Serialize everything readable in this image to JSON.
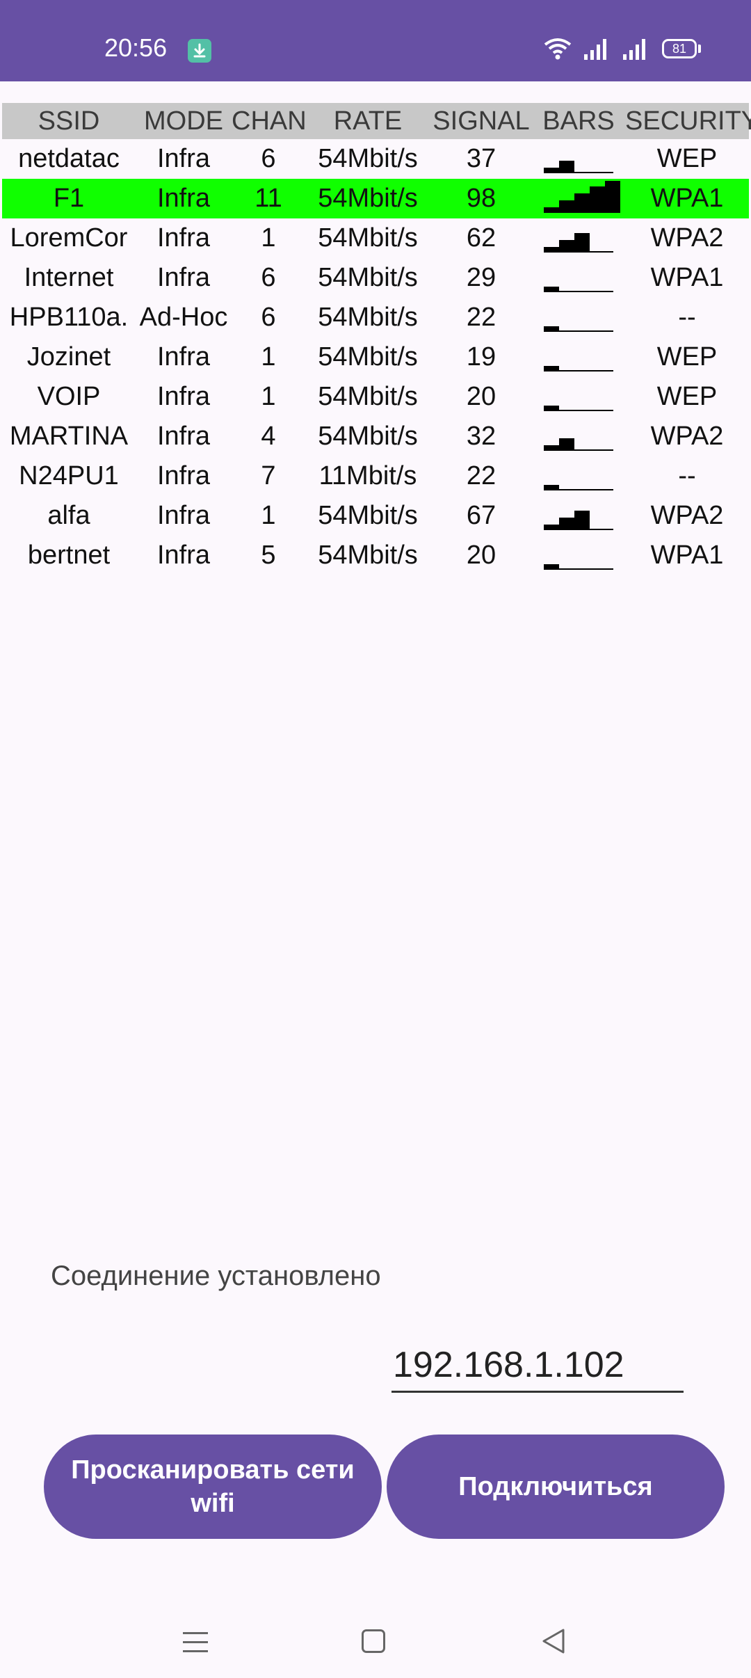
{
  "status_bar": {
    "time": "20:56",
    "battery": "81",
    "icons": [
      "download-icon",
      "wifi-icon",
      "signal-icon",
      "signal-icon",
      "battery-icon"
    ]
  },
  "table": {
    "headers": [
      "SSID",
      "MODE",
      "CHAN",
      "RATE",
      "SIGNAL",
      "BARS",
      "SECURITY"
    ],
    "rows": [
      {
        "ssid": "netdatac",
        "mode": "Infra",
        "chan": "6",
        "rate": "54Mbit/s",
        "signal": "37",
        "bars": 2,
        "security": "WEP",
        "selected": false
      },
      {
        "ssid": "F1",
        "mode": "Infra",
        "chan": "11",
        "rate": "54Mbit/s",
        "signal": "98",
        "bars": 5,
        "security": "WPA1",
        "selected": true
      },
      {
        "ssid": "LoremCor",
        "mode": "Infra",
        "chan": "1",
        "rate": "54Mbit/s",
        "signal": "62",
        "bars": 3,
        "security": "WPA2",
        "selected": false
      },
      {
        "ssid": "Internet",
        "mode": "Infra",
        "chan": "6",
        "rate": "54Mbit/s",
        "signal": "29",
        "bars": 1,
        "security": "WPA1",
        "selected": false
      },
      {
        "ssid": "HPB110a.",
        "mode": "Ad-Hoc",
        "chan": "6",
        "rate": "54Mbit/s",
        "signal": "22",
        "bars": 1,
        "security": "--",
        "selected": false
      },
      {
        "ssid": "Jozinet",
        "mode": "Infra",
        "chan": "1",
        "rate": "54Mbit/s",
        "signal": "19",
        "bars": 1,
        "security": "WEP",
        "selected": false
      },
      {
        "ssid": "VOIP",
        "mode": "Infra",
        "chan": "1",
        "rate": "54Mbit/s",
        "signal": "20",
        "bars": 1,
        "security": "WEP",
        "selected": false
      },
      {
        "ssid": "MARTINA",
        "mode": "Infra",
        "chan": "4",
        "rate": "54Mbit/s",
        "signal": "32",
        "bars": 2,
        "security": "WPA2",
        "selected": false
      },
      {
        "ssid": "N24PU1",
        "mode": "Infra",
        "chan": "7",
        "rate": "11Mbit/s",
        "signal": "22",
        "bars": 1,
        "security": "--",
        "selected": false
      },
      {
        "ssid": "alfa",
        "mode": "Infra",
        "chan": "1",
        "rate": "54Mbit/s",
        "signal": "67",
        "bars": 3,
        "security": "WPA2",
        "selected": false
      },
      {
        "ssid": "bertnet",
        "mode": "Infra",
        "chan": "5",
        "rate": "54Mbit/s",
        "signal": "20",
        "bars": 1,
        "security": "WPA1",
        "selected": false
      }
    ]
  },
  "connection_status": "Соединение установлено",
  "ip_value": "192.168.1.102",
  "buttons": {
    "scan": "Просканировать сети wifi",
    "connect": "Подключиться"
  },
  "nav": {
    "icons": [
      "menu-icon",
      "home-icon",
      "back-icon"
    ]
  },
  "colors": {
    "accent": "#6750a4",
    "selected_row": "#10ff00",
    "header_bg": "#c8c8c8"
  }
}
